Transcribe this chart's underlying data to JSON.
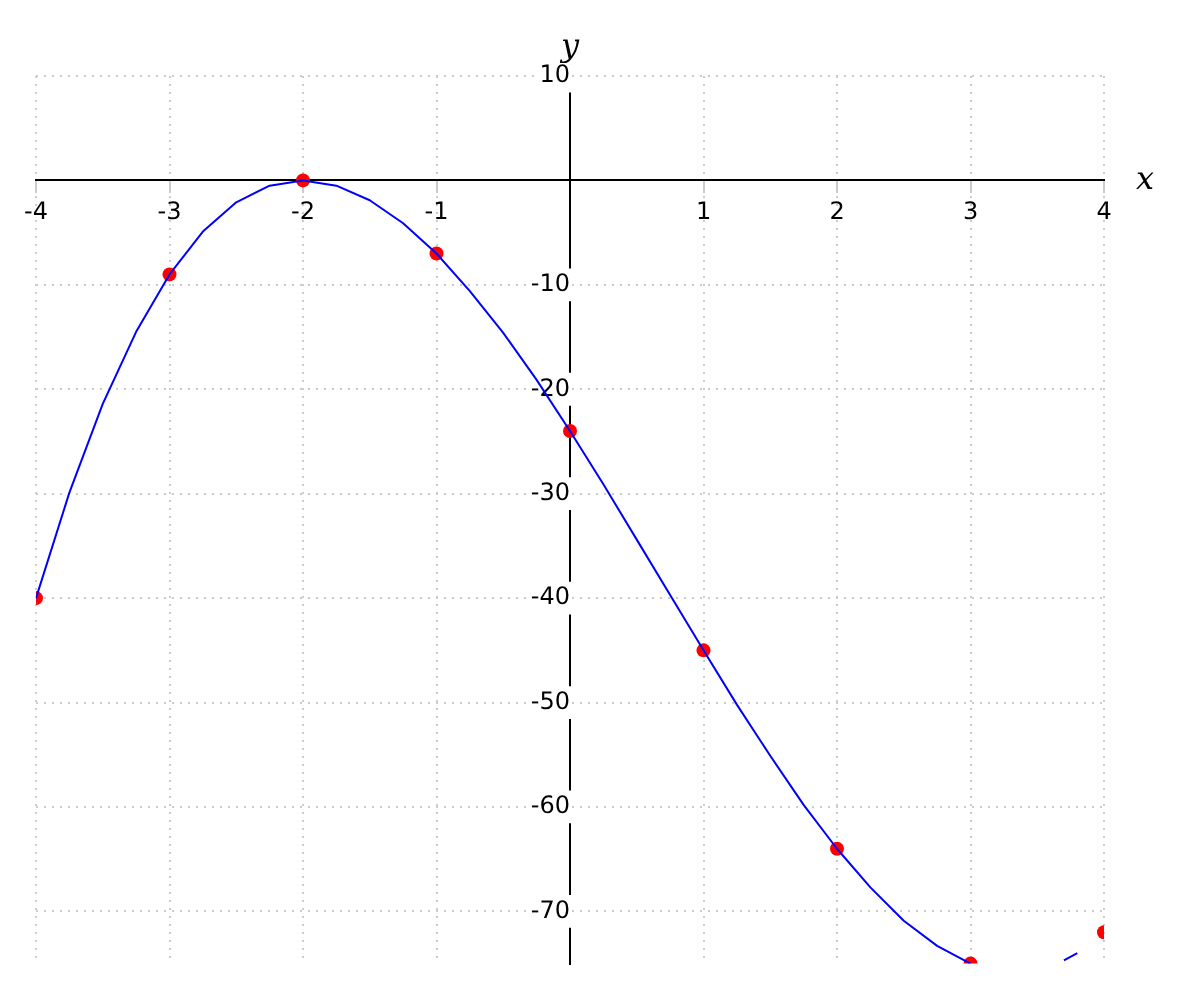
{
  "chart_data": {
    "type": "line",
    "xlabel": "x",
    "ylabel": "y",
    "xlim": [
      -4,
      4
    ],
    "ylim": [
      -75,
      10
    ],
    "xticks": [
      -4,
      -3,
      -2,
      -1,
      1,
      2,
      3,
      4
    ],
    "yticks": [
      -70,
      -60,
      -50,
      -40,
      -30,
      -20,
      -10,
      10
    ],
    "grid": true,
    "legend": false,
    "series": [
      {
        "color": "#0000ff",
        "marker": "none",
        "x": [
          -4,
          -3.75,
          -3.5,
          -3.25,
          -3,
          -2.75,
          -2.5,
          -2.25,
          -2,
          -1.75,
          -1.5,
          -1.25,
          -1,
          -0.75,
          -0.5,
          -0.25,
          0,
          0.25,
          0.5,
          0.75,
          1,
          1.25,
          1.5,
          1.75,
          2,
          2.25,
          2.5,
          2.75,
          3,
          3.25,
          3.5,
          3.7,
          3.8
        ],
        "values": [
          -40,
          -29.9,
          -21.4,
          -14.5,
          -9,
          -4.9,
          -2.1,
          -0.5,
          0,
          -0.5,
          -1.9,
          -4.1,
          -7,
          -10.6,
          -14.6,
          -19.1,
          -24,
          -29.1,
          -34.4,
          -39.7,
          -45,
          -50.2,
          -55.1,
          -59.8,
          -64,
          -67.7,
          -70.9,
          -73.3,
          -75,
          null,
          null,
          -74.7,
          -74
        ]
      },
      {
        "type": "scatter",
        "color": "#ff0000",
        "marker": "circle",
        "x": [
          -4,
          -3,
          -2,
          -1,
          0,
          1,
          2,
          3,
          4
        ],
        "values": [
          -40,
          -9,
          0,
          -7,
          -24,
          -45,
          -64,
          -75,
          -72
        ]
      }
    ]
  }
}
